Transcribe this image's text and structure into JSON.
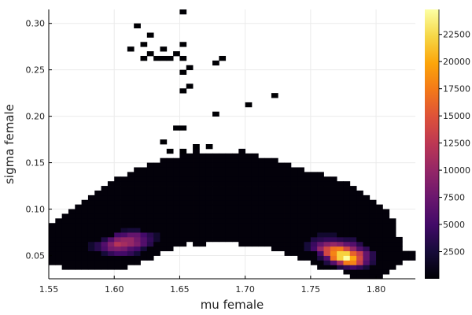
{
  "chart_data": {
    "type": "heatmap",
    "title": "",
    "xlabel": "mu female",
    "ylabel": "sigma female",
    "xlim": [
      1.55,
      1.83
    ],
    "ylim": [
      0.025,
      0.315
    ],
    "bin_size": [
      0.005,
      0.005
    ],
    "grid": true,
    "colormap": "inferno",
    "colorbar": {
      "clim": [
        0,
        24800
      ],
      "ticks": [
        "2500",
        "5000",
        "7500",
        "10000",
        "12500",
        "15000",
        "17500",
        "20000",
        "22500"
      ],
      "tick_values": [
        2500,
        5000,
        7500,
        10000,
        12500,
        15000,
        17500,
        20000,
        22500
      ]
    },
    "xticks": {
      "values": [
        1.55,
        1.6,
        1.65,
        1.7,
        1.75,
        1.8
      ],
      "labels": [
        "1.55",
        "1.60",
        "1.65",
        "1.70",
        "1.75",
        "1.80"
      ]
    },
    "yticks": {
      "values": [
        0.05,
        0.1,
        0.15,
        0.2,
        0.25,
        0.3
      ],
      "labels": [
        "0.05",
        "0.10",
        "0.15",
        "0.20",
        "0.25",
        "0.30"
      ]
    },
    "base_count": 300,
    "columns": [
      [
        1.55,
        0.04,
        0.08
      ],
      [
        1.555,
        0.04,
        0.085
      ],
      [
        1.56,
        0.035,
        0.09
      ],
      [
        1.565,
        0.035,
        0.095
      ],
      [
        1.57,
        0.035,
        0.1
      ],
      [
        1.575,
        0.035,
        0.105
      ],
      [
        1.58,
        0.035,
        0.11
      ],
      [
        1.585,
        0.035,
        0.115
      ],
      [
        1.59,
        0.035,
        0.12
      ],
      [
        1.595,
        0.035,
        0.125
      ],
      [
        1.6,
        0.035,
        0.13
      ],
      [
        1.605,
        0.035,
        0.13
      ],
      [
        1.61,
        0.04,
        0.135
      ],
      [
        1.615,
        0.04,
        0.14
      ],
      [
        1.62,
        0.045,
        0.14
      ],
      [
        1.625,
        0.045,
        0.145
      ],
      [
        1.63,
        0.05,
        0.145
      ],
      [
        1.635,
        0.055,
        0.15
      ],
      [
        1.64,
        0.055,
        0.15
      ],
      [
        1.645,
        0.06,
        0.15
      ],
      [
        1.65,
        0.06,
        0.155
      ],
      [
        1.655,
        0.065,
        0.155
      ],
      [
        1.66,
        0.06,
        0.16
      ],
      [
        1.665,
        0.06,
        0.155
      ],
      [
        1.67,
        0.065,
        0.155
      ],
      [
        1.675,
        0.065,
        0.155
      ],
      [
        1.68,
        0.065,
        0.155
      ],
      [
        1.685,
        0.065,
        0.155
      ],
      [
        1.69,
        0.065,
        0.155
      ],
      [
        1.695,
        0.06,
        0.16
      ],
      [
        1.7,
        0.06,
        0.155
      ],
      [
        1.705,
        0.06,
        0.155
      ],
      [
        1.71,
        0.06,
        0.15
      ],
      [
        1.715,
        0.06,
        0.15
      ],
      [
        1.72,
        0.055,
        0.15
      ],
      [
        1.725,
        0.055,
        0.145
      ],
      [
        1.73,
        0.05,
        0.145
      ],
      [
        1.735,
        0.05,
        0.14
      ],
      [
        1.74,
        0.045,
        0.14
      ],
      [
        1.745,
        0.045,
        0.135
      ],
      [
        1.75,
        0.04,
        0.135
      ],
      [
        1.755,
        0.035,
        0.135
      ],
      [
        1.76,
        0.035,
        0.13
      ],
      [
        1.765,
        0.035,
        0.13
      ],
      [
        1.77,
        0.035,
        0.125
      ],
      [
        1.775,
        0.03,
        0.125
      ],
      [
        1.78,
        0.025,
        0.12
      ],
      [
        1.785,
        0.025,
        0.115
      ],
      [
        1.79,
        0.025,
        0.11
      ],
      [
        1.795,
        0.025,
        0.105
      ],
      [
        1.8,
        0.025,
        0.1
      ],
      [
        1.805,
        0.03,
        0.095
      ],
      [
        1.81,
        0.035,
        0.085
      ],
      [
        1.815,
        0.04,
        0.065
      ],
      [
        1.82,
        0.045,
        0.05
      ],
      [
        1.825,
        0.045,
        0.05
      ]
    ],
    "hot_cells": [
      [
        1.6,
        0.06,
        12000
      ],
      [
        1.605,
        0.06,
        11000
      ],
      [
        1.605,
        0.065,
        10000
      ],
      [
        1.61,
        0.065,
        10000
      ],
      [
        1.61,
        0.06,
        10000
      ],
      [
        1.6,
        0.065,
        9000
      ],
      [
        1.595,
        0.06,
        9000
      ],
      [
        1.595,
        0.055,
        8000
      ],
      [
        1.6,
        0.055,
        8500
      ],
      [
        1.605,
        0.055,
        8000
      ],
      [
        1.615,
        0.065,
        8000
      ],
      [
        1.615,
        0.06,
        8500
      ],
      [
        1.615,
        0.07,
        7000
      ],
      [
        1.61,
        0.07,
        7000
      ],
      [
        1.62,
        0.065,
        6000
      ],
      [
        1.62,
        0.06,
        6000
      ],
      [
        1.59,
        0.06,
        6000
      ],
      [
        1.59,
        0.055,
        5500
      ],
      [
        1.595,
        0.065,
        6000
      ],
      [
        1.605,
        0.07,
        5500
      ],
      [
        1.6,
        0.07,
        5000
      ],
      [
        1.61,
        0.05,
        4000
      ],
      [
        1.6,
        0.05,
        5000
      ],
      [
        1.595,
        0.05,
        4000
      ],
      [
        1.605,
        0.05,
        5000
      ],
      [
        1.625,
        0.065,
        4000
      ],
      [
        1.625,
        0.07,
        3500
      ],
      [
        1.585,
        0.06,
        3500
      ],
      [
        1.585,
        0.055,
        3500
      ],
      [
        1.62,
        0.07,
        5000
      ],
      [
        1.615,
        0.055,
        5000
      ],
      [
        1.61,
        0.055,
        6000
      ],
      [
        1.625,
        0.06,
        3500
      ],
      [
        1.59,
        0.065,
        3000
      ],
      [
        1.615,
        0.05,
        2500
      ],
      [
        1.59,
        0.05,
        2500
      ],
      [
        1.62,
        0.055,
        2500
      ],
      [
        1.61,
        0.075,
        2500
      ],
      [
        1.615,
        0.075,
        2500
      ],
      [
        1.605,
        0.075,
        2000
      ],
      [
        1.58,
        0.06,
        2000
      ],
      [
        1.58,
        0.055,
        2000
      ],
      [
        1.63,
        0.065,
        2000
      ],
      [
        1.63,
        0.07,
        2000
      ],
      [
        1.775,
        0.045,
        24800
      ],
      [
        1.77,
        0.05,
        22000
      ],
      [
        1.775,
        0.05,
        22000
      ],
      [
        1.77,
        0.045,
        22000
      ],
      [
        1.765,
        0.05,
        18000
      ],
      [
        1.765,
        0.055,
        17000
      ],
      [
        1.77,
        0.055,
        17500
      ],
      [
        1.775,
        0.055,
        14000
      ],
      [
        1.78,
        0.055,
        10000
      ],
      [
        1.76,
        0.055,
        14000
      ],
      [
        1.76,
        0.05,
        14000
      ],
      [
        1.765,
        0.045,
        17000
      ],
      [
        1.78,
        0.045,
        20000
      ],
      [
        1.78,
        0.04,
        18000
      ],
      [
        1.775,
        0.04,
        17500
      ],
      [
        1.77,
        0.04,
        11000
      ],
      [
        1.785,
        0.05,
        13000
      ],
      [
        1.785,
        0.045,
        14000
      ],
      [
        1.785,
        0.04,
        13000
      ],
      [
        1.755,
        0.055,
        10000
      ],
      [
        1.755,
        0.06,
        7000
      ],
      [
        1.76,
        0.06,
        9000
      ],
      [
        1.765,
        0.06,
        10000
      ],
      [
        1.77,
        0.06,
        9000
      ],
      [
        1.775,
        0.06,
        7000
      ],
      [
        1.78,
        0.06,
        6000
      ],
      [
        1.79,
        0.05,
        7000
      ],
      [
        1.79,
        0.045,
        7000
      ],
      [
        1.79,
        0.04,
        6000
      ],
      [
        1.76,
        0.045,
        6000
      ],
      [
        1.765,
        0.04,
        6000
      ],
      [
        1.77,
        0.035,
        3000
      ],
      [
        1.775,
        0.035,
        4000
      ],
      [
        1.78,
        0.035,
        5000
      ],
      [
        1.785,
        0.035,
        4000
      ],
      [
        1.78,
        0.05,
        16000
      ],
      [
        1.75,
        0.065,
        3000
      ],
      [
        1.755,
        0.065,
        3500
      ],
      [
        1.76,
        0.065,
        4000
      ],
      [
        1.765,
        0.065,
        4000
      ],
      [
        1.77,
        0.065,
        3500
      ],
      [
        1.775,
        0.065,
        3000
      ],
      [
        1.78,
        0.065,
        3000
      ],
      [
        1.75,
        0.06,
        4500
      ],
      [
        1.75,
        0.055,
        5000
      ],
      [
        1.755,
        0.05,
        5000
      ],
      [
        1.755,
        0.045,
        3000
      ],
      [
        1.76,
        0.04,
        3000
      ],
      [
        1.785,
        0.055,
        6000
      ],
      [
        1.79,
        0.055,
        4000
      ],
      [
        1.795,
        0.05,
        3500
      ],
      [
        1.795,
        0.045,
        3500
      ],
      [
        1.795,
        0.04,
        3000
      ],
      [
        1.79,
        0.035,
        2500
      ],
      [
        1.745,
        0.06,
        2500
      ],
      [
        1.745,
        0.055,
        2500
      ],
      [
        1.755,
        0.07,
        2000
      ],
      [
        1.765,
        0.07,
        2000
      ],
      [
        1.76,
        0.07,
        2000
      ],
      [
        1.785,
        0.06,
        3500
      ]
    ],
    "outlier_cells": [
      [
        1.65,
        0.31
      ],
      [
        1.615,
        0.295
      ],
      [
        1.625,
        0.285
      ],
      [
        1.62,
        0.275
      ],
      [
        1.65,
        0.275
      ],
      [
        1.61,
        0.27
      ],
      [
        1.635,
        0.27
      ],
      [
        1.625,
        0.265
      ],
      [
        1.645,
        0.265
      ],
      [
        1.62,
        0.26
      ],
      [
        1.63,
        0.26
      ],
      [
        1.635,
        0.26
      ],
      [
        1.64,
        0.26
      ],
      [
        1.65,
        0.26
      ],
      [
        1.68,
        0.26
      ],
      [
        1.675,
        0.255
      ],
      [
        1.655,
        0.25
      ],
      [
        1.65,
        0.245
      ],
      [
        1.655,
        0.23
      ],
      [
        1.65,
        0.225
      ],
      [
        1.72,
        0.22
      ],
      [
        1.7,
        0.21
      ],
      [
        1.675,
        0.2
      ],
      [
        1.645,
        0.185
      ],
      [
        1.65,
        0.185
      ],
      [
        1.635,
        0.17
      ],
      [
        1.67,
        0.165
      ],
      [
        1.66,
        0.165
      ],
      [
        1.64,
        0.16
      ],
      [
        1.65,
        0.16
      ],
      [
        1.695,
        0.16
      ],
      [
        1.66,
        0.16
      ]
    ]
  }
}
